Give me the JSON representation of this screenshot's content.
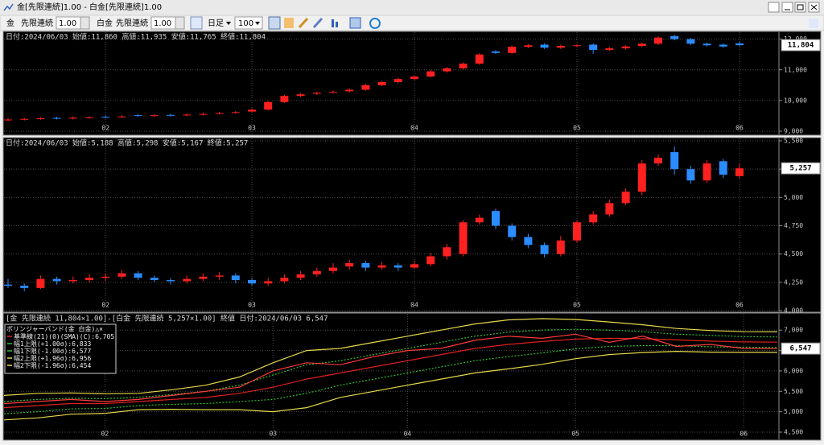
{
  "window": {
    "title": "金[先限連続]1.00 - 白金[先限連続]1.00",
    "toolbar": {
      "sym1": "金",
      "contract1": "先限連続",
      "mult1": "1.00",
      "sym2": "白金",
      "contract2": "先限連続",
      "mult2": "1.00",
      "period": "日足",
      "count": "100"
    }
  },
  "chart_data": [
    {
      "type": "candlestick",
      "header": "日付:2024/06/03 始値:11,860 高値:11,935 安値:11,765 終値:11,804",
      "last_label": "11,804",
      "up_color": "#ff2020",
      "down_color": "#2a8cff",
      "categories": [
        null,
        null,
        null,
        null,
        null,
        null,
        "02",
        null,
        null,
        null,
        null,
        null,
        null,
        null,
        null,
        "03",
        null,
        null,
        null,
        null,
        null,
        null,
        null,
        null,
        null,
        "04",
        null,
        null,
        null,
        null,
        null,
        null,
        null,
        null,
        null,
        "05",
        null,
        null,
        null,
        null,
        null,
        null,
        null,
        null,
        null,
        "06"
      ],
      "open": [
        9360,
        9380,
        9400,
        9430,
        9410,
        9440,
        9470,
        9460,
        9520,
        9500,
        9530,
        9520,
        9540,
        9580,
        9600,
        9640,
        9700,
        9950,
        10150,
        10220,
        10260,
        10300,
        10350,
        10500,
        10600,
        10700,
        10780,
        10950,
        11050,
        11200,
        11600,
        11550,
        11750,
        11820,
        11720,
        11780,
        11820,
        11650,
        11700,
        11780,
        11850,
        12100,
        12000,
        11850,
        11820,
        11860
      ],
      "high": [
        9420,
        9440,
        9460,
        9470,
        9480,
        9490,
        9510,
        9520,
        9560,
        9560,
        9570,
        9580,
        9600,
        9630,
        9660,
        9740,
        9980,
        10190,
        10240,
        10290,
        10320,
        10390,
        10540,
        10640,
        10740,
        10820,
        10990,
        11090,
        11240,
        11540,
        11640,
        11790,
        11840,
        11860,
        11820,
        11840,
        11860,
        11740,
        11800,
        11890,
        12090,
        12140,
        12040,
        11890,
        11860,
        11935
      ],
      "low": [
        9330,
        9350,
        9370,
        9380,
        9380,
        9410,
        9420,
        9430,
        9470,
        9470,
        9480,
        9490,
        9510,
        9550,
        9570,
        9610,
        9680,
        9920,
        10110,
        10180,
        10220,
        10260,
        10320,
        10470,
        10560,
        10660,
        10750,
        10910,
        11010,
        11170,
        11510,
        11520,
        11710,
        11680,
        11680,
        11740,
        11520,
        11610,
        11660,
        11740,
        11810,
        11960,
        11810,
        11760,
        11720,
        11765
      ],
      "close": [
        9380,
        9400,
        9420,
        9410,
        9440,
        9450,
        9460,
        9480,
        9500,
        9520,
        9510,
        9540,
        9560,
        9590,
        9620,
        9700,
        9950,
        10150,
        10200,
        10250,
        10280,
        10350,
        10500,
        10600,
        10700,
        10780,
        10950,
        11050,
        11200,
        11500,
        11550,
        11750,
        11800,
        11720,
        11780,
        11800,
        11650,
        11700,
        11760,
        11850,
        12050,
        12000,
        11850,
        11800,
        11760,
        11804
      ],
      "ylim": [
        9000,
        12200
      ],
      "yticks": [
        {
          "value": 9000,
          "label": "9,000"
        },
        {
          "value": 10000,
          "label": "10,000"
        },
        {
          "value": 11000,
          "label": "11,000"
        },
        {
          "value": 12000,
          "label": "12,000"
        }
      ],
      "grid": true
    },
    {
      "type": "candlestick",
      "header": "日付:2024/06/03 始値:5,188 高値:5,298 安値:5,167 終値:5,257",
      "last_label": "5,257",
      "up_color": "#ff2020",
      "down_color": "#2a8cff",
      "categories": [
        null,
        null,
        null,
        null,
        null,
        null,
        "02",
        null,
        null,
        null,
        null,
        null,
        null,
        null,
        null,
        "03",
        null,
        null,
        null,
        null,
        null,
        null,
        null,
        null,
        null,
        "04",
        null,
        null,
        null,
        null,
        null,
        null,
        null,
        null,
        null,
        "05",
        null,
        null,
        null,
        null,
        null,
        null,
        null,
        null,
        null,
        "06"
      ],
      "open": [
        4230,
        4220,
        4200,
        4280,
        4260,
        4270,
        4290,
        4300,
        4330,
        4290,
        4270,
        4260,
        4280,
        4300,
        4310,
        4270,
        4240,
        4260,
        4290,
        4320,
        4350,
        4390,
        4420,
        4380,
        4400,
        4380,
        4410,
        4480,
        4500,
        4780,
        4880,
        4750,
        4650,
        4580,
        4500,
        4620,
        4780,
        4850,
        4950,
        5050,
        5300,
        5400,
        5250,
        5150,
        5320,
        5188
      ],
      "high": [
        4280,
        4240,
        4310,
        4300,
        4300,
        4320,
        4330,
        4360,
        4350,
        4310,
        4290,
        4310,
        4330,
        4340,
        4330,
        4290,
        4290,
        4320,
        4350,
        4380,
        4420,
        4450,
        4440,
        4430,
        4420,
        4440,
        4510,
        4590,
        4800,
        4850,
        4900,
        4770,
        4680,
        4600,
        4660,
        4800,
        4880,
        4980,
        5080,
        5330,
        5380,
        5450,
        5280,
        5330,
        5340,
        5298
      ],
      "low": [
        4200,
        4170,
        4190,
        4230,
        4240,
        4250,
        4260,
        4280,
        4270,
        4250,
        4230,
        4240,
        4260,
        4270,
        4240,
        4220,
        4220,
        4240,
        4270,
        4300,
        4330,
        4360,
        4350,
        4360,
        4350,
        4370,
        4390,
        4450,
        4480,
        4760,
        4720,
        4620,
        4550,
        4470,
        4480,
        4600,
        4760,
        4830,
        4930,
        5020,
        5280,
        5200,
        5120,
        5130,
        5170,
        5167
      ],
      "close": [
        4220,
        4200,
        4280,
        4260,
        4270,
        4290,
        4300,
        4330,
        4290,
        4270,
        4260,
        4280,
        4300,
        4310,
        4270,
        4240,
        4260,
        4290,
        4320,
        4350,
        4380,
        4420,
        4380,
        4400,
        4380,
        4410,
        4480,
        4560,
        4780,
        4820,
        4750,
        4650,
        4580,
        4500,
        4620,
        4780,
        4850,
        4950,
        5050,
        5300,
        5350,
        5250,
        5150,
        5300,
        5200,
        5257
      ],
      "ylim": [
        4000,
        5500
      ],
      "yticks": [
        {
          "value": 4000,
          "label": "4,000"
        },
        {
          "value": 4250,
          "label": "4,250"
        },
        {
          "value": 4500,
          "label": "4,500"
        },
        {
          "value": 4750,
          "label": "4,750"
        },
        {
          "value": 5000,
          "label": "5,000"
        },
        {
          "value": 5250,
          "label": "5,250"
        },
        {
          "value": 5500,
          "label": "5,500"
        }
      ],
      "grid": true
    },
    {
      "type": "line",
      "header": "[金 先限連続 11,804×1.00]-[白金 先限連続 5,257×1.00] 終値 日付:2024/06/03 6,547",
      "legend_title": "ボリンジャーバンド(金 白金)△×",
      "last_label": "6,547",
      "categories": [
        null,
        null,
        null,
        "02",
        null,
        null,
        null,
        null,
        "03",
        null,
        null,
        null,
        "04",
        null,
        null,
        null,
        null,
        "05",
        null,
        null,
        null,
        null,
        "06",
        null
      ],
      "series": [
        {
          "name": "基準線(21)(0)(SMA)(C):",
          "last_label": "6,705",
          "color": "#e02020",
          "dashed": false,
          "values": [
            5100,
            5150,
            5200,
            5200,
            5250,
            5300,
            5350,
            5450,
            5600,
            5800,
            5950,
            6100,
            6250,
            6400,
            6550,
            6650,
            6720,
            6780,
            6800,
            6790,
            6760,
            6730,
            6710,
            6705
          ]
        },
        {
          "name": "幅1上限(+1.00σ):",
          "last_label": "6,833",
          "color": "#30c030",
          "dashed": true,
          "values": [
            5250,
            5300,
            5330,
            5320,
            5350,
            5420,
            5500,
            5650,
            5900,
            6150,
            6250,
            6400,
            6550,
            6700,
            6850,
            6950,
            7000,
            7020,
            7000,
            6960,
            6900,
            6870,
            6840,
            6833
          ]
        },
        {
          "name": "幅1下限(-1.00σ):",
          "last_label": "6,577",
          "color": "#30c030",
          "dashed": true,
          "values": [
            4950,
            5000,
            5070,
            5080,
            5150,
            5180,
            5200,
            5250,
            5300,
            5450,
            5650,
            5800,
            5950,
            6100,
            6250,
            6350,
            6440,
            6540,
            6600,
            6620,
            6620,
            6590,
            6580,
            6577
          ]
        },
        {
          "name": "幅2上限(+1.96σ):",
          "last_label": "6,956",
          "color": "#e6d84a",
          "dashed": false,
          "values": [
            5400,
            5450,
            5460,
            5440,
            5450,
            5540,
            5650,
            5850,
            6200,
            6500,
            6550,
            6700,
            6850,
            7000,
            7150,
            7250,
            7280,
            7260,
            7200,
            7130,
            7040,
            6990,
            6960,
            6956
          ]
        },
        {
          "name": "幅2下限(-1.96σ):",
          "last_label": "6,454",
          "color": "#e6d84a",
          "dashed": false,
          "values": [
            4800,
            4850,
            4940,
            4960,
            5050,
            5060,
            5050,
            5050,
            5000,
            5100,
            5350,
            5500,
            5650,
            5800,
            5950,
            6050,
            6160,
            6300,
            6400,
            6450,
            6480,
            6460,
            6455,
            6454
          ]
        },
        {
          "color": "#ff3a3a",
          "dashed": false,
          "values": [
            5200,
            5250,
            5300,
            5250,
            5300,
            5400,
            5500,
            5600,
            6000,
            6200,
            6150,
            6350,
            6500,
            6550,
            6750,
            6850,
            6800,
            6900,
            6700,
            6850,
            6600,
            6650,
            6550,
            6547
          ]
        }
      ],
      "ylim": [
        4500,
        7300
      ],
      "yticks": [
        {
          "value": 4500,
          "label": "4,500"
        },
        {
          "value": 5000,
          "label": "5,000"
        },
        {
          "value": 5500,
          "label": "5,500"
        },
        {
          "value": 6000,
          "label": "6,000"
        },
        {
          "value": 6500,
          "label": "6,500"
        },
        {
          "value": 7000,
          "label": "7,000"
        }
      ],
      "grid": true
    }
  ]
}
